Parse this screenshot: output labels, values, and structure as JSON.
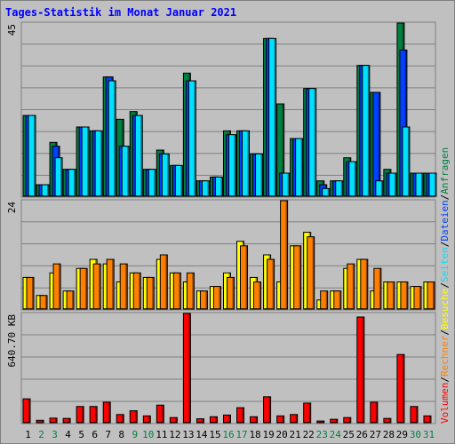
{
  "title": "Tages-Statistik im Monat Januar 2021",
  "chart_data": {
    "type": "bar",
    "days": [
      "1",
      "2",
      "3",
      "4",
      "5",
      "6",
      "7",
      "8",
      "9",
      "10",
      "11",
      "12",
      "13",
      "14",
      "15",
      "16",
      "17",
      "18",
      "19",
      "20",
      "21",
      "22",
      "23",
      "24",
      "25",
      "26",
      "27",
      "28",
      "29",
      "30",
      "31"
    ],
    "weekend_days": [
      "2",
      "3",
      "9",
      "10",
      "16",
      "17",
      "23",
      "24",
      "30",
      "31"
    ],
    "colors": {
      "anfragen": "#008040",
      "dateien": "#0040ff",
      "seiten": "#00e0ff",
      "besuche": "#ffff00",
      "rechner": "#ff8000",
      "volumen": "#ff0000",
      "weekday": "#000000",
      "weekend": "#008040"
    },
    "panels": [
      {
        "id": "hits",
        "ymax_label": "45",
        "ylim": [
          0,
          45
        ],
        "series": [
          {
            "name": "Anfragen",
            "color": "#008040",
            "values": [
              21,
              3,
              14,
              7,
              18,
              17,
              31,
              20,
              22,
              7,
              12,
              8,
              32,
              4,
              5,
              17,
              17,
              11,
              41,
              24,
              15,
              28,
              4,
              4,
              10,
              34,
              27,
              7,
              45,
              6,
              6
            ]
          },
          {
            "name": "Dateien",
            "color": "#0040ff",
            "values": [
              21,
              3,
              13,
              7,
              18,
              17,
              31,
              13,
              21,
              7,
              11,
              8,
              30,
              4,
              5,
              16,
              17,
              11,
              41,
              6,
              15,
              28,
              3,
              4,
              9,
              34,
              27,
              6,
              38,
              6,
              6
            ]
          },
          {
            "name": "Seiten",
            "color": "#00e0ff",
            "values": [
              21,
              3,
              10,
              7,
              18,
              17,
              30,
              13,
              21,
              7,
              11,
              8,
              30,
              4,
              5,
              16,
              17,
              11,
              41,
              6,
              15,
              28,
              2,
              4,
              9,
              34,
              4,
              6,
              18,
              6,
              6
            ]
          }
        ]
      },
      {
        "id": "visits",
        "ymax_label": "24",
        "ylim": [
          0,
          24
        ],
        "series": [
          {
            "name": "Besuche",
            "color": "#ffff00",
            "values": [
              7,
              3,
              8,
              4,
              9,
              11,
              10,
              6,
              8,
              7,
              11,
              8,
              6,
              4,
              5,
              8,
              15,
              7,
              12,
              6,
              14,
              17,
              2,
              4,
              9,
              11,
              4,
              6,
              6,
              5,
              6
            ]
          },
          {
            "name": "Rechner",
            "color": "#ff8000",
            "values": [
              7,
              3,
              10,
              4,
              9,
              10,
              11,
              10,
              8,
              7,
              12,
              8,
              8,
              4,
              5,
              7,
              14,
              6,
              11,
              24,
              14,
              16,
              4,
              4,
              10,
              11,
              9,
              6,
              6,
              5,
              6
            ]
          }
        ]
      },
      {
        "id": "volume",
        "ymax_label": "640.70 KB",
        "ylim": [
          0,
          640.7
        ],
        "series": [
          {
            "name": "Volumen",
            "color": "#ff0000",
            "values": [
              140,
              14,
              27,
              25,
              95,
              95,
              120,
              48,
              70,
              40,
              103,
              30,
              640.7,
              23,
              35,
              45,
              88,
              35,
              152,
              40,
              48,
              115,
              10,
              20,
              30,
              620,
              120,
              25,
              400,
              95,
              40
            ]
          }
        ]
      }
    ],
    "legend": [
      "Volumen",
      "/",
      "Rechner",
      "/",
      "Besuche",
      "/",
      "Seiten",
      "/",
      "Dateien",
      "/",
      "Anfragen"
    ]
  }
}
